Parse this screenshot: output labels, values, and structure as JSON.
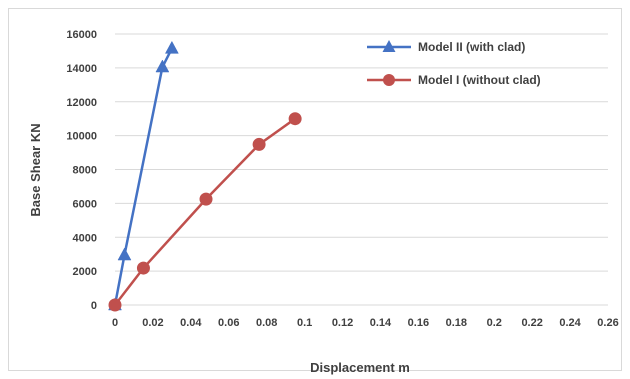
{
  "chart_data": {
    "type": "scatter",
    "xlabel": "Displacement m",
    "ylabel": "Base Shear KN",
    "xlim": [
      0,
      0.26
    ],
    "ylim": [
      0,
      16000
    ],
    "x_ticks": [
      "0",
      "0.02",
      "0.04",
      "0.06",
      "0.08",
      "0.1",
      "0.12",
      "0.14",
      "0.16",
      "0.18",
      "0.2",
      "0.22",
      "0.24",
      "0.26"
    ],
    "y_ticks": [
      "0",
      "2000",
      "4000",
      "6000",
      "8000",
      "10000",
      "12000",
      "14000",
      "16000"
    ],
    "grid": "horizontal",
    "legend_position": "top-right",
    "series": [
      {
        "name": "Model II (with clad)",
        "color": "#4472c4",
        "marker": "triangle",
        "points": [
          [
            0,
            0
          ],
          [
            0.005,
            2950
          ],
          [
            0.025,
            14050
          ],
          [
            0.03,
            15150
          ]
        ]
      },
      {
        "name": "Model I (without clad)",
        "color": "#c0504d",
        "marker": "circle",
        "points": [
          [
            0,
            0
          ],
          [
            0.015,
            2180
          ],
          [
            0.048,
            6250
          ],
          [
            0.076,
            9480
          ],
          [
            0.095,
            11000
          ]
        ]
      }
    ]
  }
}
